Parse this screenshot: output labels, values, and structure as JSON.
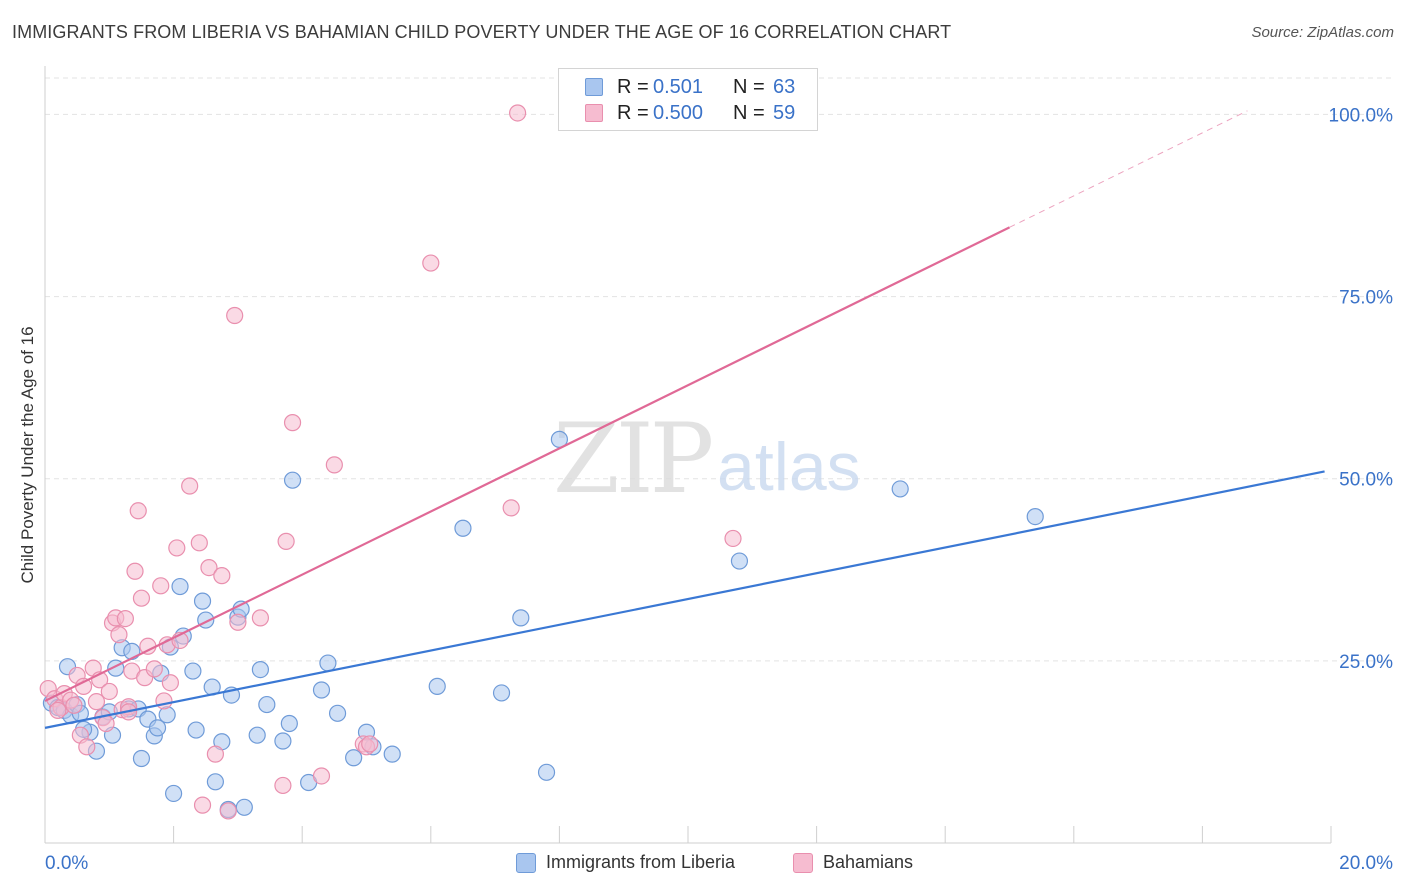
{
  "header": {
    "title": "IMMIGRANTS FROM LIBERIA VS BAHAMIAN CHILD POVERTY UNDER THE AGE OF 16 CORRELATION CHART",
    "source": "Source: ZipAtlas.com"
  },
  "legend_top": {
    "rows": [
      {
        "r_label": "R =",
        "r_value": "0.501",
        "n_label": "N =",
        "n_value": "63"
      },
      {
        "r_label": "R =",
        "r_value": "0.500",
        "n_label": "N =",
        "n_value": "59"
      }
    ]
  },
  "colors": {
    "blue_fill": "#a9c6ef",
    "blue_stroke": "#6f9bd8",
    "blue_line": "#3a78d4",
    "pink_fill": "#f6bcd0",
    "pink_stroke": "#e98fae",
    "pink_line": "#e06996",
    "tick_text": "#3a72c8",
    "grid": "#e3e3e3"
  },
  "watermark": {
    "zip": "ZIP",
    "atlas": "atlas"
  },
  "chart_data": {
    "type": "scatter",
    "xlabel": "",
    "ylabel": "Child Poverty Under the Age of 16",
    "xlim": [
      0,
      20
    ],
    "ylim": [
      0,
      105
    ],
    "x_tick_labels": [
      "0.0%",
      "20.0%"
    ],
    "y_tick_labels": [
      "25.0%",
      "50.0%",
      "75.0%",
      "100.0%"
    ],
    "y_ticks": [
      25,
      50,
      75,
      100
    ],
    "grid": true,
    "legend_position": "bottom",
    "series": [
      {
        "name": "Immigrants from Liberia",
        "r": 0.501,
        "n": 63,
        "trend": {
          "x0": 0.0,
          "y0": 15.8,
          "x1": 19.9,
          "y1": 51.0
        },
        "points": [
          [
            0.1,
            19.2
          ],
          [
            0.2,
            18.6
          ],
          [
            0.3,
            18.2
          ],
          [
            0.35,
            24.2
          ],
          [
            0.4,
            17.5
          ],
          [
            0.5,
            19.0
          ],
          [
            0.55,
            17.8
          ],
          [
            0.7,
            15.2
          ],
          [
            0.8,
            12.6
          ],
          [
            0.9,
            17.3
          ],
          [
            1.05,
            14.8
          ],
          [
            1.1,
            24.0
          ],
          [
            1.2,
            26.8
          ],
          [
            1.3,
            18.4
          ],
          [
            1.35,
            26.3
          ],
          [
            1.45,
            18.4
          ],
          [
            1.5,
            11.6
          ],
          [
            1.6,
            17.0
          ],
          [
            1.7,
            14.7
          ],
          [
            1.75,
            15.8
          ],
          [
            1.8,
            23.3
          ],
          [
            1.9,
            17.6
          ],
          [
            1.95,
            26.9
          ],
          [
            2.1,
            35.2
          ],
          [
            2.15,
            28.4
          ],
          [
            2.3,
            23.6
          ],
          [
            2.35,
            15.5
          ],
          [
            2.45,
            33.2
          ],
          [
            2.5,
            30.6
          ],
          [
            2.6,
            21.4
          ],
          [
            2.65,
            8.4
          ],
          [
            2.75,
            13.9
          ],
          [
            2.85,
            4.6
          ],
          [
            2.9,
            20.3
          ],
          [
            3.0,
            31.0
          ],
          [
            3.05,
            32.1
          ],
          [
            3.1,
            4.9
          ],
          [
            3.3,
            14.8
          ],
          [
            3.35,
            23.8
          ],
          [
            3.45,
            19.0
          ],
          [
            3.7,
            14.0
          ],
          [
            3.8,
            16.4
          ],
          [
            3.85,
            49.8
          ],
          [
            4.1,
            8.3
          ],
          [
            4.3,
            21.0
          ],
          [
            4.4,
            24.7
          ],
          [
            4.55,
            17.8
          ],
          [
            4.8,
            11.7
          ],
          [
            5.0,
            15.2
          ],
          [
            5.1,
            13.2
          ],
          [
            5.4,
            12.2
          ],
          [
            6.1,
            21.5
          ],
          [
            6.5,
            43.2
          ],
          [
            7.1,
            20.6
          ],
          [
            7.4,
            30.9
          ],
          [
            7.8,
            9.7
          ],
          [
            8.0,
            55.4
          ],
          [
            10.8,
            38.7
          ],
          [
            13.3,
            48.6
          ],
          [
            15.4,
            44.8
          ],
          [
            2.0,
            6.8
          ],
          [
            1.0,
            18.0
          ],
          [
            0.6,
            15.6
          ]
        ]
      },
      {
        "name": "Bahamians",
        "r": 0.5,
        "n": 59,
        "trend": {
          "x0": 0.0,
          "y0": 19.5,
          "x1": 15.0,
          "y1": 84.5
        },
        "trend_dashed": {
          "x0": 15.0,
          "y0": 84.5,
          "x1": 18.7,
          "y1": 100.5
        },
        "points": [
          [
            0.05,
            21.2
          ],
          [
            0.15,
            19.8
          ],
          [
            0.25,
            18.6
          ],
          [
            0.3,
            20.5
          ],
          [
            0.4,
            19.6
          ],
          [
            0.5,
            23.0
          ],
          [
            0.55,
            14.8
          ],
          [
            0.6,
            21.5
          ],
          [
            0.65,
            13.2
          ],
          [
            0.75,
            24.0
          ],
          [
            0.8,
            19.4
          ],
          [
            0.85,
            22.4
          ],
          [
            0.9,
            17.2
          ],
          [
            0.95,
            16.4
          ],
          [
            1.0,
            20.8
          ],
          [
            1.05,
            30.2
          ],
          [
            1.1,
            30.9
          ],
          [
            1.15,
            28.6
          ],
          [
            1.2,
            18.3
          ],
          [
            1.25,
            30.8
          ],
          [
            1.3,
            18.7
          ],
          [
            1.35,
            23.6
          ],
          [
            1.4,
            37.3
          ],
          [
            1.45,
            45.6
          ],
          [
            1.5,
            33.6
          ],
          [
            1.55,
            22.7
          ],
          [
            1.6,
            27.0
          ],
          [
            1.7,
            23.9
          ],
          [
            1.8,
            35.3
          ],
          [
            1.85,
            19.5
          ],
          [
            1.9,
            27.2
          ],
          [
            1.95,
            22.0
          ],
          [
            2.05,
            40.5
          ],
          [
            2.1,
            27.8
          ],
          [
            2.25,
            49.0
          ],
          [
            2.4,
            41.2
          ],
          [
            2.45,
            5.2
          ],
          [
            2.55,
            37.8
          ],
          [
            2.65,
            12.2
          ],
          [
            2.75,
            36.7
          ],
          [
            2.85,
            4.4
          ],
          [
            2.95,
            72.4
          ],
          [
            3.0,
            30.3
          ],
          [
            3.35,
            30.9
          ],
          [
            3.7,
            7.9
          ],
          [
            3.75,
            41.4
          ],
          [
            3.85,
            57.7
          ],
          [
            4.3,
            9.2
          ],
          [
            4.5,
            51.9
          ],
          [
            4.95,
            13.6
          ],
          [
            5.0,
            13.2
          ],
          [
            5.05,
            13.6
          ],
          [
            6.0,
            79.6
          ],
          [
            7.25,
            46.0
          ],
          [
            7.35,
            100.2
          ],
          [
            10.7,
            41.8
          ],
          [
            1.3,
            18.0
          ],
          [
            0.2,
            18.2
          ],
          [
            0.45,
            18.9
          ]
        ]
      }
    ]
  },
  "bottom_legend": {
    "items": [
      "Immigrants from Liberia",
      "Bahamians"
    ]
  }
}
